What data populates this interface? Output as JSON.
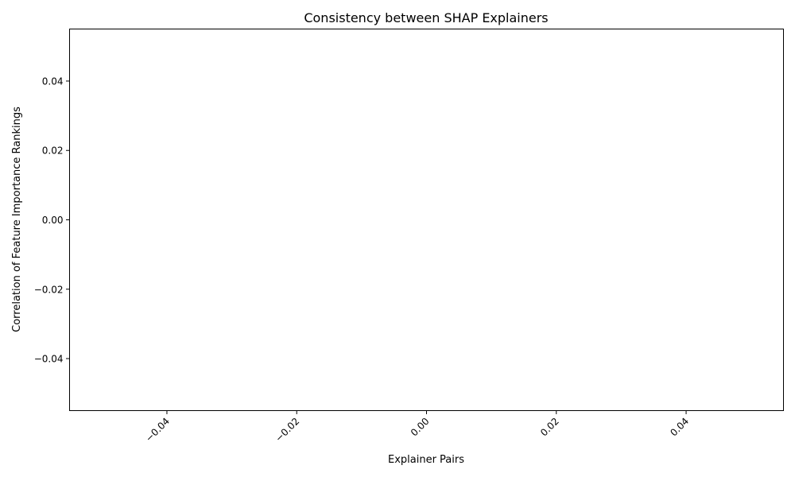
{
  "chart_data": {
    "type": "bar",
    "title": "Consistency between SHAP Explainers",
    "xlabel": "Explainer Pairs",
    "ylabel": "Correlation of Feature Importance Rankings",
    "categories": [],
    "values": [],
    "xlim": [
      -0.055,
      0.055
    ],
    "ylim": [
      -0.055,
      0.055
    ],
    "x_ticks": [
      -0.04,
      -0.02,
      0.0,
      0.02,
      0.04
    ],
    "x_tick_labels": [
      "−0.04",
      "−0.02",
      "0.00",
      "0.02",
      "0.04"
    ],
    "x_tick_rotation": 45,
    "y_ticks": [
      -0.04,
      -0.02,
      0.0,
      0.02,
      0.04
    ],
    "y_tick_labels": [
      "−0.04",
      "−0.02",
      "0.00",
      "0.02",
      "0.04"
    ],
    "grid": false
  }
}
